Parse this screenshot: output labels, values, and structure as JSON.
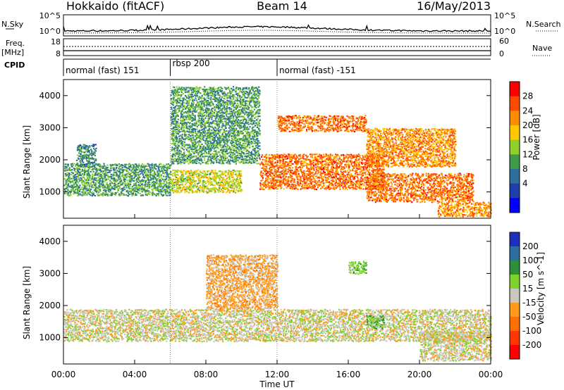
{
  "header": {
    "station": "Hokkaido (fitACF)",
    "beam": "Beam 14",
    "date": "16/May/2013"
  },
  "noise_panel": {
    "left_label": "N.Sky",
    "right_label": "N.Search",
    "left_ticks": [
      "10^5",
      "10^0"
    ],
    "right_ticks": [
      "10^5",
      "10^0"
    ]
  },
  "freq_panel": {
    "left_label_1": "Freq.",
    "left_label_2": "[MHz]",
    "right_label": "Nave",
    "left_ticks": [
      "18",
      "8"
    ],
    "right_ticks": [
      "60",
      "0"
    ]
  },
  "cpid_panel": {
    "label": "CPID",
    "segments": [
      {
        "label": "normal (fast) 151",
        "start_h": 0,
        "end_h": 6
      },
      {
        "label": "rbsp 200",
        "start_h": 6,
        "end_h": 12
      },
      {
        "label": "normal (fast) -151",
        "start_h": 12,
        "end_h": 24
      }
    ]
  },
  "range_axis": {
    "label": "Slant Range [km]",
    "ticks": [
      "1000",
      "2000",
      "3000",
      "4000"
    ]
  },
  "time_axis": {
    "label": "Time UT",
    "ticks": [
      "00:00",
      "04:00",
      "08:00",
      "12:00",
      "16:00",
      "20:00",
      "00:00"
    ]
  },
  "power_scale": {
    "label": "Power [dB]",
    "ticks": [
      "28",
      "24",
      "20",
      "16",
      "12",
      "8",
      "4"
    ],
    "colors": [
      "#ff0000",
      "#ff4a00",
      "#ff8c00",
      "#ffc800",
      "#8fd12a",
      "#3f9b4a",
      "#2d6f9a",
      "#1f3fb0",
      "#0000ff"
    ]
  },
  "velocity_scale": {
    "label": "Velocity [m s^-1]",
    "ticks": [
      "200",
      "100",
      "50",
      "15",
      "-15",
      "-50",
      "-100",
      "-200"
    ],
    "colors": [
      "#1f2fbf",
      "#2e6ea4",
      "#2e8f3a",
      "#7cd42b",
      "#c8c8c0",
      "#ff9a1a",
      "#ff7000",
      "#ff3800",
      "#ff0000"
    ]
  },
  "chart_data": [
    {
      "type": "heatmap",
      "title": "Power",
      "xlabel": "Time UT",
      "ylabel": "Slant Range [km]",
      "xlim": [
        0,
        24
      ],
      "ylim": [
        180,
        4500
      ],
      "zlim": [
        0,
        32
      ],
      "bands": [
        {
          "t": [
            0,
            6
          ],
          "r": [
            900,
            1900
          ],
          "value": 12
        },
        {
          "t": [
            0.7,
            1.8
          ],
          "r": [
            1800,
            2500
          ],
          "value": 10
        },
        {
          "t": [
            6,
            10
          ],
          "r": [
            1000,
            1700
          ],
          "value": 18
        },
        {
          "t": [
            6,
            11
          ],
          "r": [
            1900,
            4300
          ],
          "value": 12
        },
        {
          "t": [
            11,
            18
          ],
          "r": [
            1100,
            2200
          ],
          "value": 26
        },
        {
          "t": [
            12,
            17
          ],
          "r": [
            2900,
            3400
          ],
          "value": 26
        },
        {
          "t": [
            17,
            23
          ],
          "r": [
            700,
            1600
          ],
          "value": 26
        },
        {
          "t": [
            17,
            22
          ],
          "r": [
            1800,
            3000
          ],
          "value": 24
        },
        {
          "t": [
            21,
            24
          ],
          "r": [
            250,
            700
          ],
          "value": 24
        }
      ]
    },
    {
      "type": "heatmap",
      "title": "Velocity",
      "xlabel": "Time UT",
      "ylabel": "Slant Range [km]",
      "xlim": [
        0,
        24
      ],
      "ylim": [
        180,
        4500
      ],
      "zlim": [
        -200,
        200
      ],
      "bands": [
        {
          "t": [
            0,
            24
          ],
          "r": [
            900,
            1900
          ],
          "value": 0
        },
        {
          "t": [
            8,
            12
          ],
          "r": [
            1900,
            3600
          ],
          "value": -30
        },
        {
          "t": [
            16,
            17
          ],
          "r": [
            3000,
            3400
          ],
          "value": 40
        },
        {
          "t": [
            17,
            18
          ],
          "r": [
            1300,
            1700
          ],
          "value": 40
        },
        {
          "t": [
            20,
            24
          ],
          "r": [
            300,
            1200
          ],
          "value": 0
        }
      ]
    }
  ]
}
